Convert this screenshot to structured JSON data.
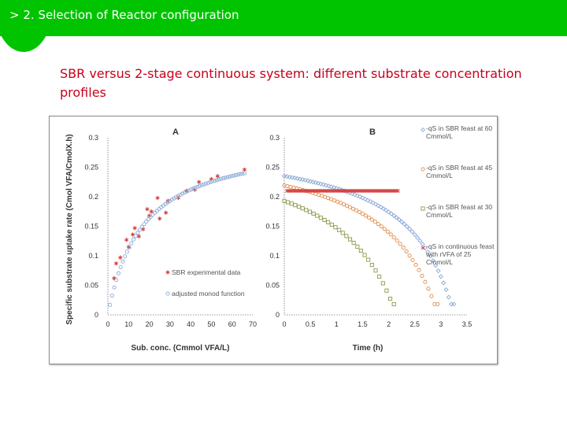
{
  "header": {
    "title": "> 2. Selection of Reactor configuration"
  },
  "slide": {
    "subtitle": "SBR versus 2-stage continuous system: different substrate concentration profiles"
  },
  "colors": {
    "green": "#00c400",
    "red_text": "#c8001e",
    "blue": "#8aa9d6",
    "red": "#d43a3a",
    "orange": "#e08a4a",
    "olive": "#8a9a48"
  },
  "chart_data": [
    {
      "panel": "A",
      "type": "scatter",
      "xlabel": "Sub. conc. (Cmmol VFA/L)",
      "ylabel": "Specific substrate uptake rate (Cmol VFA/CmolX.h)",
      "xlim": [
        0,
        70
      ],
      "ylim": [
        0,
        0.3
      ],
      "xticks": [
        0,
        10,
        20,
        30,
        40,
        50,
        60,
        70
      ],
      "yticks": [
        0,
        0.05,
        0.1,
        0.15,
        0.2,
        0.25,
        0.3
      ],
      "ytick_labels": [
        "0",
        "0.05",
        "0.1",
        "0.15",
        "0.2",
        "0.25",
        "0.3"
      ],
      "legend_position": "bottom-right",
      "series": [
        {
          "name": "SBR experimental data",
          "marker": "star",
          "color": "#d43a3a",
          "points": [
            [
              3,
              0.062
            ],
            [
              4,
              0.087
            ],
            [
              6,
              0.097
            ],
            [
              9,
              0.127
            ],
            [
              10,
              0.115
            ],
            [
              12,
              0.136
            ],
            [
              13,
              0.147
            ],
            [
              15,
              0.133
            ],
            [
              17,
              0.145
            ],
            [
              19,
              0.179
            ],
            [
              20,
              0.168
            ],
            [
              21,
              0.175
            ],
            [
              24,
              0.198
            ],
            [
              25,
              0.163
            ],
            [
              28,
              0.173
            ],
            [
              29,
              0.193
            ],
            [
              34,
              0.198
            ],
            [
              38,
              0.21
            ],
            [
              42,
              0.212
            ],
            [
              44,
              0.225
            ],
            [
              50,
              0.23
            ],
            [
              53,
              0.235
            ],
            [
              66,
              0.246
            ]
          ]
        },
        {
          "name": "adjusted monod function",
          "marker": "circle",
          "color": "#8aa9d6",
          "model": {
            "kind": "monod",
            "qmax": 0.301,
            "ks": 16.8,
            "x_start": 1,
            "x_end": 66,
            "n": 64
          }
        }
      ]
    },
    {
      "panel": "B",
      "type": "scatter",
      "xlabel": "Time (h)",
      "xlim": [
        0,
        3.5
      ],
      "ylim": [
        0,
        0.3
      ],
      "xticks": [
        0,
        0.5,
        1,
        1.5,
        2,
        2.5,
        3,
        3.5
      ],
      "xtick_labels": [
        "0",
        "0.5",
        "1",
        "1.5",
        "2",
        "2.5",
        "3",
        "3.5"
      ],
      "yticks": [
        0,
        0.05,
        0.1,
        0.15,
        0.2,
        0.25,
        0.3
      ],
      "ytick_labels": [
        "0",
        "0.05",
        "0.1",
        "0.15",
        "0.2",
        "0.25",
        "0.3"
      ],
      "legend_position": "right",
      "series": [
        {
          "name": "-qS in SBR feast at 60 Cmmol/L",
          "marker": "diamond",
          "color": "#8aa9d6",
          "model": {
            "kind": "depletion",
            "s0": 60,
            "t_end": 3.25,
            "step": 0.05
          }
        },
        {
          "name": "-qS in SBR feast at 45 Cmmol/L",
          "marker": "circle",
          "color": "#e08a4a",
          "model": {
            "kind": "depletion",
            "s0": 45,
            "t_end": 2.95,
            "step": 0.06
          }
        },
        {
          "name": "-qS in SBR feast at 30 Cmmol/L",
          "marker": "square",
          "color": "#8a9a48",
          "model": {
            "kind": "depletion",
            "s0": 30,
            "t_end": 2.15,
            "step": 0.07
          }
        },
        {
          "name": "-qS in continuous feast with rVFA of 25 Cmmol/L",
          "marker": "cross",
          "color": "#d43a3a",
          "model": {
            "kind": "constant",
            "value": 0.21,
            "t_start": 0.05,
            "t_end": 2.2,
            "step": 0.03
          }
        }
      ]
    }
  ]
}
